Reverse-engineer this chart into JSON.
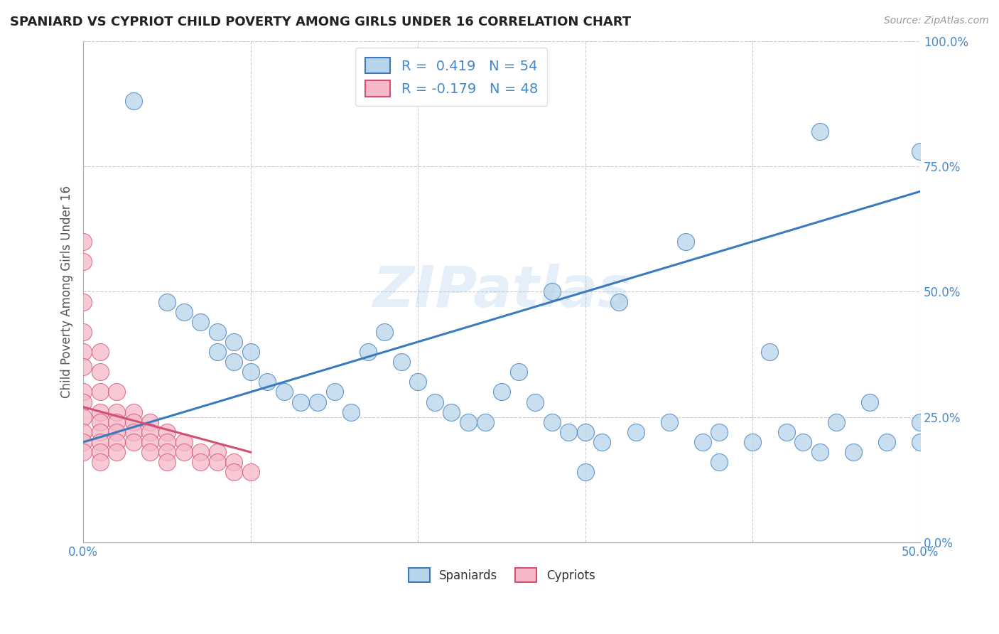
{
  "title": "SPANIARD VS CYPRIOT CHILD POVERTY AMONG GIRLS UNDER 16 CORRELATION CHART",
  "source": "Source: ZipAtlas.com",
  "ylabel_label": "Child Poverty Among Girls Under 16",
  "xlim": [
    0.0,
    0.5
  ],
  "ylim": [
    0.0,
    1.0
  ],
  "spaniards_color": "#b8d4ea",
  "cypriots_color": "#f5b8c8",
  "trend_blue": "#3a7abf",
  "trend_pink": "#d45070",
  "tick_color": "#4488cc",
  "legend_blue_label": "R =  0.419   N = 54",
  "legend_pink_label": "R = -0.179   N = 48",
  "legend_spaniards": "Spaniards",
  "legend_cypriots": "Cypriots",
  "watermark": "ZIPatlas",
  "spaniards_x": [
    0.03,
    0.05,
    0.06,
    0.07,
    0.08,
    0.08,
    0.09,
    0.09,
    0.1,
    0.1,
    0.11,
    0.12,
    0.13,
    0.14,
    0.15,
    0.16,
    0.17,
    0.18,
    0.19,
    0.2,
    0.21,
    0.22,
    0.23,
    0.24,
    0.25,
    0.26,
    0.27,
    0.28,
    0.29,
    0.3,
    0.31,
    0.33,
    0.35,
    0.37,
    0.38,
    0.4,
    0.41,
    0.43,
    0.44,
    0.45,
    0.46,
    0.48,
    0.5,
    0.28,
    0.32,
    0.36,
    0.42,
    0.47,
    0.5,
    0.5,
    0.2,
    0.44,
    0.38,
    0.3
  ],
  "spaniards_y": [
    0.88,
    0.48,
    0.46,
    0.44,
    0.42,
    0.38,
    0.4,
    0.36,
    0.38,
    0.34,
    0.32,
    0.3,
    0.28,
    0.28,
    0.3,
    0.26,
    0.38,
    0.42,
    0.36,
    0.32,
    0.28,
    0.26,
    0.24,
    0.24,
    0.3,
    0.34,
    0.28,
    0.24,
    0.22,
    0.22,
    0.2,
    0.22,
    0.24,
    0.2,
    0.22,
    0.2,
    0.38,
    0.2,
    0.18,
    0.24,
    0.18,
    0.2,
    0.78,
    0.5,
    0.48,
    0.6,
    0.22,
    0.28,
    0.24,
    0.2,
    0.96,
    0.82,
    0.16,
    0.14
  ],
  "cypriots_x": [
    0.0,
    0.0,
    0.0,
    0.0,
    0.0,
    0.0,
    0.0,
    0.0,
    0.0,
    0.0,
    0.0,
    0.01,
    0.01,
    0.01,
    0.01,
    0.01,
    0.01,
    0.01,
    0.01,
    0.01,
    0.02,
    0.02,
    0.02,
    0.02,
    0.02,
    0.02,
    0.03,
    0.03,
    0.03,
    0.03,
    0.04,
    0.04,
    0.04,
    0.04,
    0.05,
    0.05,
    0.05,
    0.05,
    0.06,
    0.06,
    0.07,
    0.07,
    0.08,
    0.08,
    0.09,
    0.09,
    0.1,
    0.0
  ],
  "cypriots_y": [
    0.6,
    0.48,
    0.42,
    0.38,
    0.35,
    0.3,
    0.28,
    0.25,
    0.22,
    0.2,
    0.18,
    0.38,
    0.34,
    0.3,
    0.26,
    0.24,
    0.22,
    0.2,
    0.18,
    0.16,
    0.3,
    0.26,
    0.24,
    0.22,
    0.2,
    0.18,
    0.26,
    0.24,
    0.22,
    0.2,
    0.24,
    0.22,
    0.2,
    0.18,
    0.22,
    0.2,
    0.18,
    0.16,
    0.2,
    0.18,
    0.18,
    0.16,
    0.18,
    0.16,
    0.16,
    0.14,
    0.14,
    0.56
  ],
  "blue_trend_x": [
    0.0,
    0.5
  ],
  "blue_trend_y": [
    0.2,
    0.7
  ],
  "pink_trend_x": [
    0.0,
    0.1
  ],
  "pink_trend_y": [
    0.27,
    0.18
  ]
}
